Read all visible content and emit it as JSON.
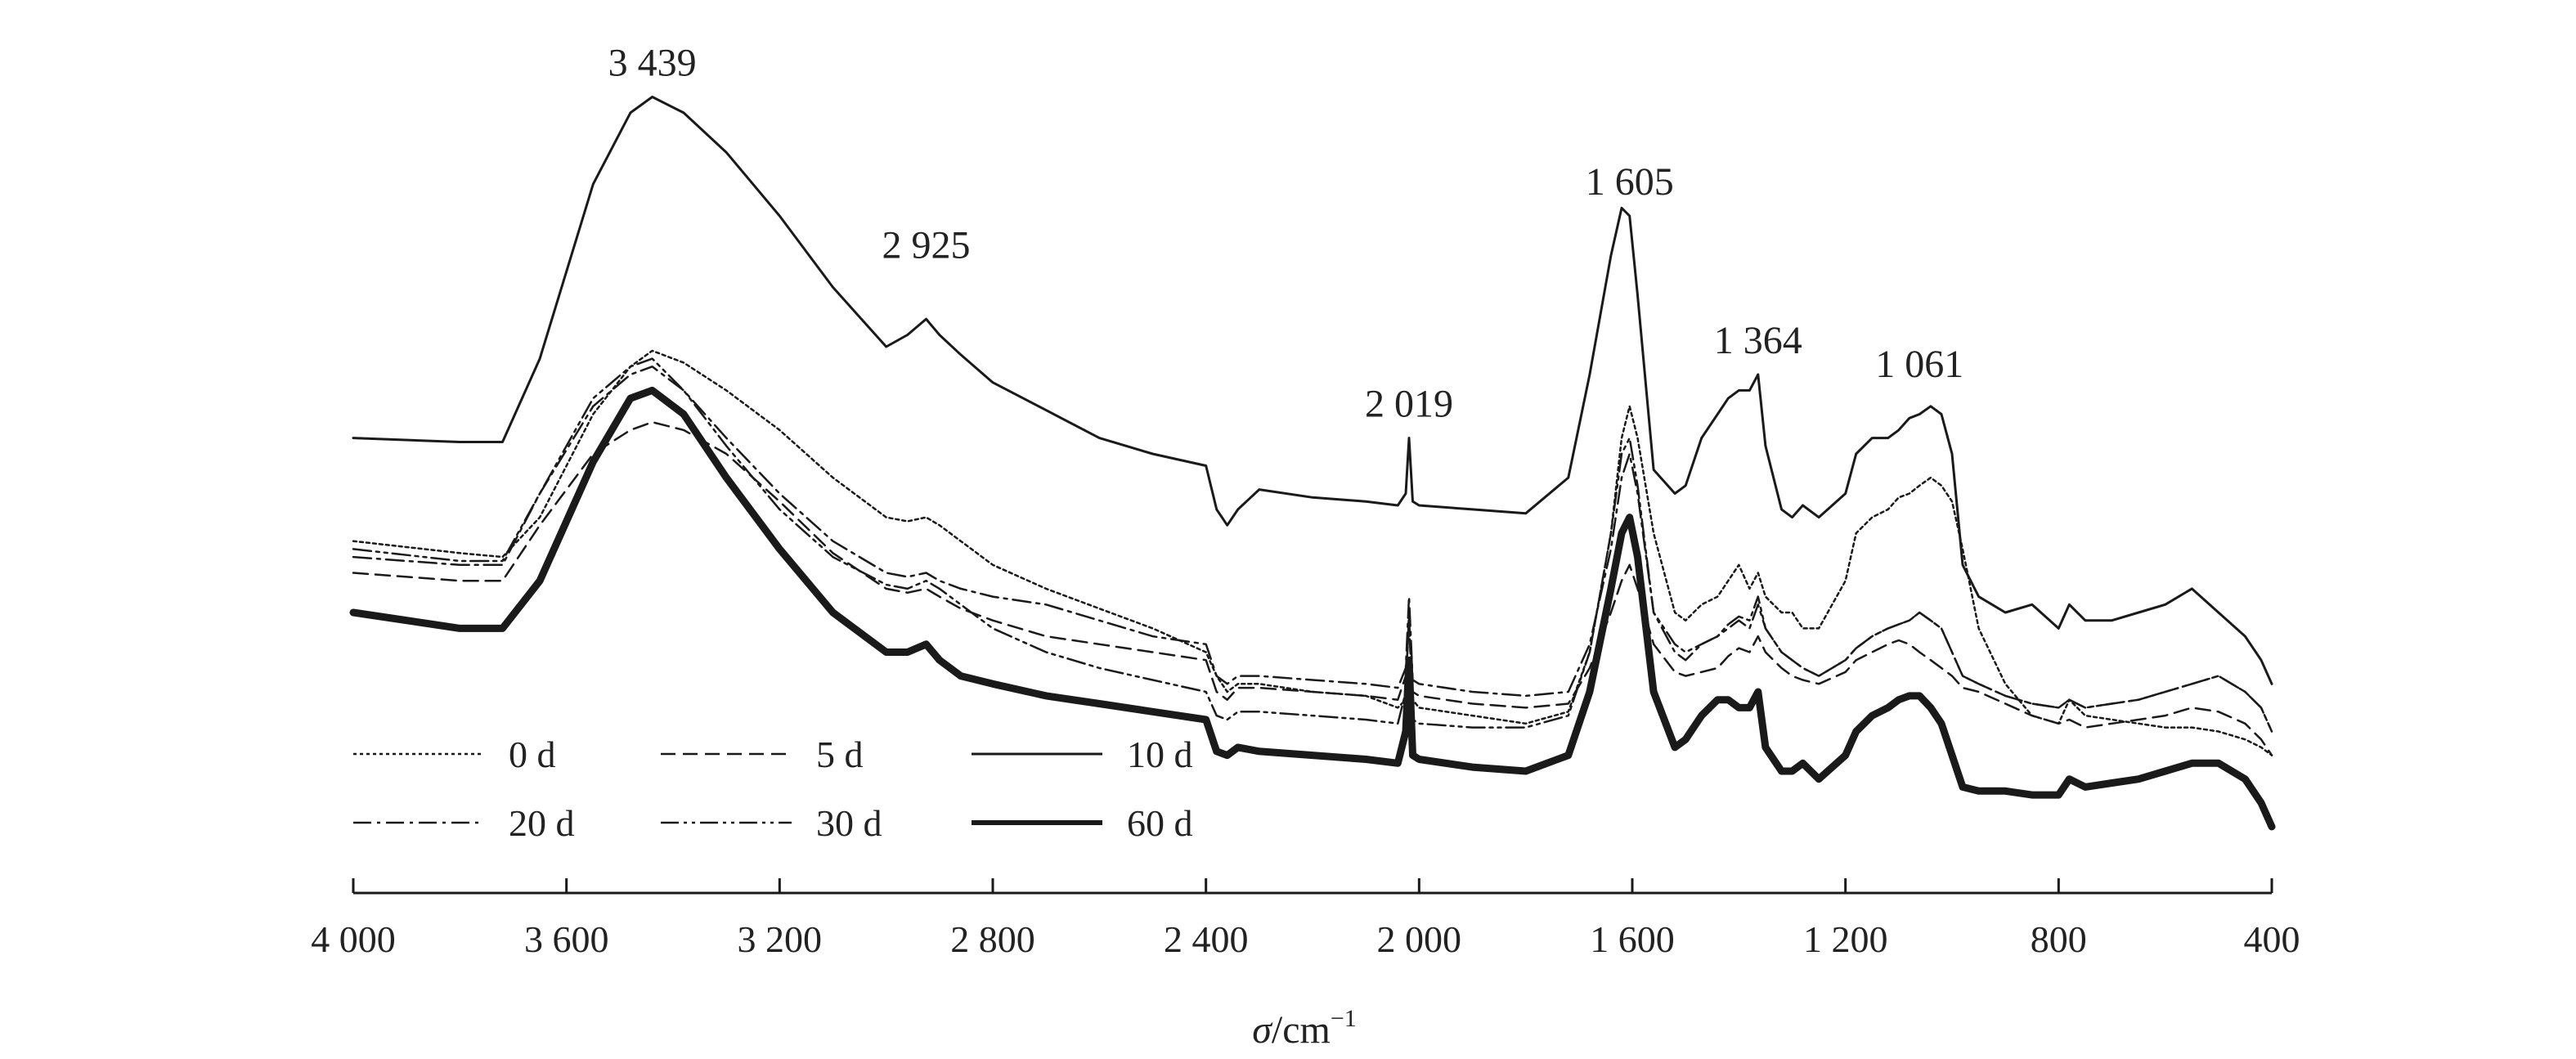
{
  "chart_data": {
    "type": "line",
    "title": "",
    "xlabel": {
      "symbol": "σ",
      "unit": "/cm",
      "exponent": "−1"
    },
    "ylabel": "",
    "xlim": [
      4000,
      400
    ],
    "x_reversed": true,
    "y_axis_shown": false,
    "y_units": "relative transmittance (arbitrary, stacked offsets)",
    "grid": false,
    "legend_position": "bottom-left",
    "x_ticks": [
      {
        "value": 4000,
        "label": "4 000"
      },
      {
        "value": 3600,
        "label": "3 600"
      },
      {
        "value": 3200,
        "label": "3 200"
      },
      {
        "value": 2800,
        "label": "2 800"
      },
      {
        "value": 2400,
        "label": "2 400"
      },
      {
        "value": 2000,
        "label": "2 000"
      },
      {
        "value": 1600,
        "label": "1 600"
      },
      {
        "value": 1200,
        "label": "1 200"
      },
      {
        "value": 800,
        "label": "800"
      },
      {
        "value": 400,
        "label": "400"
      }
    ],
    "peak_annotations": [
      {
        "x": 3439,
        "y": 95,
        "label": "3 439"
      },
      {
        "x": 2925,
        "y": 72,
        "label": "2 925"
      },
      {
        "x": 2019,
        "y": 52,
        "label": "2 019"
      },
      {
        "x": 1605,
        "y": 80,
        "label": "1 605"
      },
      {
        "x": 1364,
        "y": 60,
        "label": "1 364"
      },
      {
        "x": 1061,
        "y": 57,
        "label": "1 061"
      }
    ],
    "series": [
      {
        "name": "0 d",
        "dash": "4,4",
        "width": 2.5,
        "x": [
          4000,
          3800,
          3720,
          3650,
          3550,
          3480,
          3439,
          3380,
          3300,
          3200,
          3100,
          3000,
          2960,
          2925,
          2900,
          2860,
          2800,
          2700,
          2600,
          2500,
          2400,
          2380,
          2360,
          2340,
          2300,
          2200,
          2100,
          2040,
          2025,
          2019,
          2012,
          2000,
          1900,
          1800,
          1720,
          1680,
          1640,
          1620,
          1605,
          1590,
          1560,
          1520,
          1500,
          1470,
          1440,
          1420,
          1400,
          1380,
          1364,
          1350,
          1320,
          1300,
          1280,
          1250,
          1200,
          1180,
          1150,
          1120,
          1100,
          1080,
          1061,
          1040,
          1020,
          1000,
          980,
          950,
          900,
          850,
          800,
          780,
          750,
          700,
          650,
          600,
          550,
          500,
          450,
          420,
          400
        ],
        "y": [
          39,
          37.5,
          37,
          42,
          55,
          61,
          63,
          61.5,
          58,
          53,
          47,
          42,
          41.5,
          42,
          41,
          39,
          36,
          33,
          30.5,
          28,
          25,
          22,
          20,
          21,
          21,
          20,
          19.5,
          18,
          19,
          22,
          19,
          18,
          17,
          16,
          17.5,
          25,
          40,
          52,
          56,
          52,
          40,
          30,
          29,
          31,
          32,
          34,
          36,
          33,
          35,
          32,
          30,
          30,
          28,
          28,
          34,
          40,
          42,
          43,
          44.5,
          45,
          46,
          47,
          46,
          44,
          38,
          28,
          21,
          17,
          16,
          19,
          17,
          16.5,
          16,
          15.5,
          15.5,
          15,
          14,
          13,
          12
        ]
      },
      {
        "name": "5 d",
        "dash": "18,9",
        "width": 2.5,
        "x": [
          4000,
          3800,
          3720,
          3650,
          3550,
          3480,
          3439,
          3380,
          3300,
          3200,
          3100,
          3000,
          2960,
          2925,
          2900,
          2860,
          2800,
          2700,
          2600,
          2500,
          2400,
          2380,
          2360,
          2340,
          2300,
          2200,
          2100,
          2040,
          2025,
          2019,
          2012,
          2000,
          1900,
          1800,
          1720,
          1680,
          1640,
          1620,
          1605,
          1590,
          1560,
          1520,
          1500,
          1470,
          1440,
          1420,
          1400,
          1380,
          1364,
          1350,
          1320,
          1300,
          1280,
          1250,
          1200,
          1180,
          1150,
          1120,
          1100,
          1080,
          1061,
          1040,
          1020,
          1000,
          980,
          950,
          900,
          850,
          800,
          780,
          750,
          700,
          650,
          600,
          550,
          500,
          450,
          420,
          400
        ],
        "y": [
          35,
          34,
          34,
          41,
          50,
          53,
          54,
          53,
          50,
          44,
          37.5,
          33,
          32.5,
          33,
          32,
          30.5,
          29,
          27,
          26,
          25,
          24,
          20,
          19,
          20.5,
          20.5,
          20,
          19.5,
          19,
          22,
          28,
          20,
          19.5,
          18.5,
          18,
          18.5,
          23,
          30,
          34,
          36,
          33,
          26,
          22.5,
          22,
          22.5,
          23,
          24.5,
          25.5,
          25,
          27,
          25,
          23,
          22,
          21.5,
          21,
          22.5,
          24,
          25,
          26,
          26.5,
          26,
          25,
          24,
          23,
          22,
          20.5,
          20,
          18.5,
          17,
          16,
          16.5,
          15.5,
          16,
          16.5,
          17,
          18,
          17.5,
          16,
          14,
          12
        ]
      },
      {
        "name": "10 d",
        "dash": "none",
        "width": 3,
        "x": [
          4000,
          3800,
          3720,
          3650,
          3550,
          3480,
          3439,
          3380,
          3300,
          3200,
          3100,
          3000,
          2960,
          2925,
          2900,
          2860,
          2800,
          2700,
          2600,
          2500,
          2400,
          2380,
          2360,
          2340,
          2300,
          2200,
          2100,
          2040,
          2025,
          2019,
          2012,
          2000,
          1900,
          1800,
          1720,
          1680,
          1640,
          1620,
          1605,
          1590,
          1560,
          1520,
          1500,
          1470,
          1440,
          1420,
          1400,
          1380,
          1364,
          1350,
          1320,
          1300,
          1280,
          1250,
          1200,
          1180,
          1150,
          1120,
          1100,
          1080,
          1061,
          1040,
          1020,
          1000,
          980,
          950,
          900,
          850,
          800,
          780,
          750,
          700,
          650,
          600,
          550,
          500,
          450,
          420,
          400
        ],
        "y": [
          52,
          51.5,
          51.5,
          62,
          84,
          93,
          95,
          93,
          88,
          80,
          71,
          63.5,
          65,
          67,
          65,
          62.5,
          59,
          55.5,
          52,
          50,
          48.5,
          43,
          41,
          43,
          45.5,
          44.5,
          44,
          43.5,
          45,
          52,
          44,
          43.5,
          43,
          42.5,
          47,
          60,
          75,
          81,
          80,
          70,
          48,
          45,
          46,
          52,
          55,
          57,
          58,
          58,
          60,
          51,
          43,
          42,
          43.5,
          42,
          45,
          50,
          52,
          52,
          53,
          54.5,
          55,
          56,
          55,
          50,
          36,
          32,
          30,
          31,
          28,
          31,
          29,
          29,
          30,
          31,
          33,
          30,
          27,
          24,
          21
        ]
      },
      {
        "name": "20 d",
        "dash": "22,7,4,7",
        "width": 2.5,
        "x": [
          4000,
          3800,
          3720,
          3650,
          3550,
          3480,
          3439,
          3380,
          3300,
          3200,
          3100,
          3000,
          2960,
          2925,
          2900,
          2860,
          2800,
          2700,
          2600,
          2500,
          2400,
          2380,
          2360,
          2340,
          2300,
          2200,
          2100,
          2040,
          2025,
          2019,
          2012,
          2000,
          1900,
          1800,
          1720,
          1680,
          1640,
          1620,
          1605,
          1590,
          1560,
          1520,
          1500,
          1470,
          1440,
          1420,
          1400,
          1380,
          1364,
          1350,
          1320,
          1300,
          1280,
          1250,
          1200,
          1180,
          1150,
          1120,
          1100,
          1080,
          1061,
          1040,
          1020,
          1000,
          980,
          950,
          900,
          850,
          800,
          780,
          750,
          700,
          650,
          600,
          550,
          500,
          450,
          420,
          400
        ],
        "y": [
          37,
          36,
          36,
          45,
          56,
          60,
          61,
          58,
          52,
          45,
          39,
          35,
          34.5,
          35,
          34,
          33,
          32,
          31,
          29,
          27,
          26,
          22,
          21,
          22,
          22,
          21.5,
          21,
          20.5,
          23,
          32,
          21.5,
          21,
          20,
          19.5,
          20,
          26,
          38,
          47,
          50,
          45,
          30,
          25,
          24,
          26,
          27,
          28,
          29,
          28,
          31,
          28,
          25,
          24,
          23,
          22,
          24,
          25.5,
          27,
          28,
          28.5,
          29,
          30,
          29,
          28,
          25,
          22,
          21,
          19.5,
          18.5,
          18,
          19,
          18,
          18.5,
          19,
          20,
          21,
          22,
          20,
          18,
          15
        ]
      },
      {
        "name": "30 d",
        "dash": "22,6,4,6,4,6",
        "width": 2.5,
        "x": [
          4000,
          3800,
          3720,
          3650,
          3550,
          3480,
          3439,
          3380,
          3300,
          3200,
          3100,
          3000,
          2960,
          2925,
          2900,
          2860,
          2800,
          2700,
          2600,
          2500,
          2400,
          2380,
          2360,
          2340,
          2300,
          2200,
          2100,
          2040,
          2025,
          2019,
          2012,
          2000,
          1900,
          1800,
          1720,
          1680,
          1640,
          1620,
          1605,
          1590,
          1560,
          1520,
          1500,
          1470,
          1440,
          1420,
          1400,
          1380,
          1364,
          1350,
          1320,
          1300,
          1280,
          1250,
          1200,
          1180,
          1150,
          1120,
          1100,
          1080,
          1061,
          1040,
          1020,
          1000,
          980,
          950,
          900,
          850,
          800,
          780,
          750,
          700,
          650,
          600,
          550,
          500,
          450,
          420,
          400
        ],
        "y": [
          38,
          36.5,
          36.5,
          45,
          57,
          61,
          62,
          58,
          51,
          43,
          37,
          33.5,
          33,
          34,
          33,
          31,
          28,
          25,
          23,
          21.5,
          20,
          17,
          16.5,
          17.5,
          17.5,
          17,
          16.5,
          16,
          20,
          30,
          16.5,
          16,
          15.5,
          15.5,
          17,
          25,
          40,
          50,
          52,
          46,
          30,
          26,
          25,
          26,
          27,
          28.5,
          29.5,
          29,
          32,
          28,
          25,
          24,
          23,
          22,
          24,
          25.5,
          27,
          28,
          28.5,
          29,
          30,
          29,
          28,
          25,
          22,
          21,
          19.5,
          18.5,
          18,
          19,
          18,
          18.5,
          19,
          20,
          21,
          22,
          20,
          18,
          15
        ]
      },
      {
        "name": "60 d",
        "dash": "none",
        "width": 9,
        "x": [
          4000,
          3800,
          3720,
          3650,
          3550,
          3480,
          3439,
          3380,
          3300,
          3200,
          3100,
          3000,
          2960,
          2925,
          2900,
          2860,
          2800,
          2700,
          2600,
          2500,
          2400,
          2380,
          2360,
          2340,
          2300,
          2200,
          2100,
          2040,
          2025,
          2019,
          2012,
          2000,
          1900,
          1800,
          1720,
          1680,
          1640,
          1620,
          1605,
          1590,
          1560,
          1520,
          1500,
          1470,
          1440,
          1420,
          1400,
          1380,
          1364,
          1350,
          1320,
          1300,
          1280,
          1250,
          1200,
          1180,
          1150,
          1120,
          1100,
          1080,
          1061,
          1040,
          1020,
          1000,
          980,
          950,
          900,
          850,
          800,
          780,
          750,
          700,
          650,
          600,
          550,
          500,
          450,
          420,
          400
        ],
        "y": [
          30,
          28,
          28,
          34,
          49,
          57,
          58,
          55,
          47,
          38,
          30,
          25,
          25,
          26,
          24,
          22,
          21,
          19.5,
          18.5,
          17.5,
          16.5,
          12.5,
          12,
          13,
          12.5,
          12,
          11.5,
          11,
          15,
          24,
          12,
          11.5,
          10.5,
          10,
          12,
          20,
          33,
          40,
          42,
          37,
          20,
          13,
          14,
          17,
          19,
          19,
          18,
          18,
          20,
          13,
          10,
          10,
          11,
          9,
          12,
          15,
          17,
          18,
          19,
          19.5,
          19.5,
          18,
          16,
          12,
          8,
          7.5,
          7.5,
          7,
          7,
          9,
          8,
          8.5,
          9,
          10,
          11,
          11,
          9,
          6,
          3
        ]
      }
    ]
  }
}
